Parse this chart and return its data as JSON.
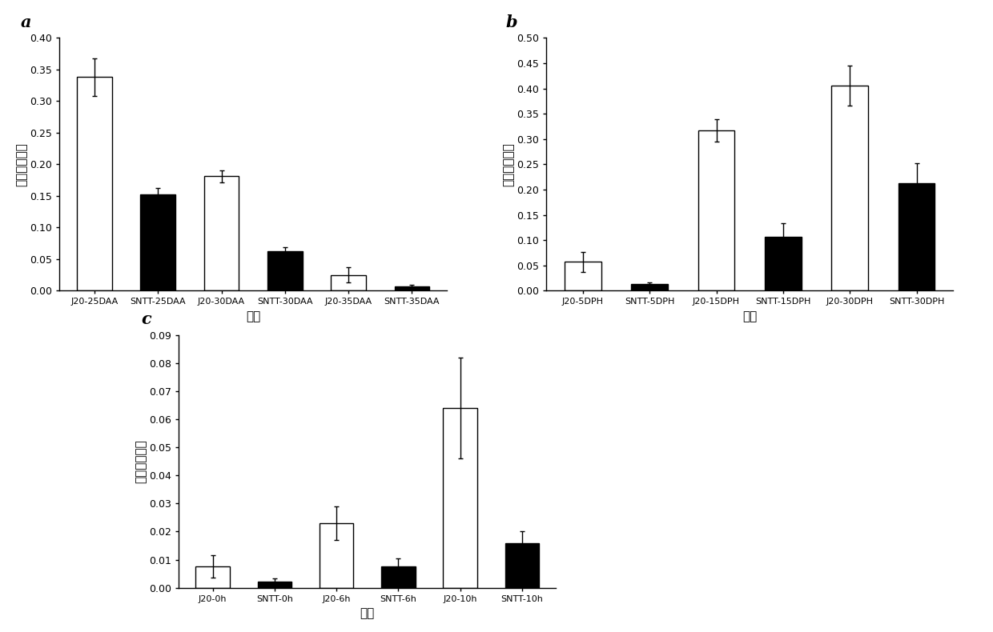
{
  "panel_a": {
    "categories": [
      "J20-25DAA",
      "SNTT-25DAA",
      "J20-30DAA",
      "SNTT-30DAA",
      "J20-35DAA",
      "SNTT-35DAA"
    ],
    "values": [
      0.338,
      0.153,
      0.181,
      0.062,
      0.025,
      0.007
    ],
    "errors": [
      0.03,
      0.01,
      0.01,
      0.007,
      0.012,
      0.003
    ],
    "colors": [
      "white",
      "black",
      "white",
      "black",
      "white",
      "black"
    ],
    "ylim": [
      0,
      0.4
    ],
    "yticks": [
      0.0,
      0.05,
      0.1,
      0.15,
      0.2,
      0.25,
      0.3,
      0.35,
      0.4
    ],
    "ylabel": "相对表达水平",
    "xlabel": "材料",
    "label": "a"
  },
  "panel_b": {
    "categories": [
      "J20-5DPH",
      "SNTT-5DPH",
      "J20-15DPH",
      "SNTT-15DPH",
      "J20-30DPH",
      "SNTT-30DPH"
    ],
    "values": [
      0.057,
      0.013,
      0.317,
      0.106,
      0.406,
      0.213
    ],
    "errors": [
      0.02,
      0.003,
      0.022,
      0.028,
      0.04,
      0.04
    ],
    "colors": [
      "white",
      "black",
      "white",
      "black",
      "white",
      "black"
    ],
    "ylim": [
      0,
      0.5
    ],
    "yticks": [
      0.0,
      0.05,
      0.1,
      0.15,
      0.2,
      0.25,
      0.3,
      0.35,
      0.4,
      0.45,
      0.5
    ],
    "ylabel": "相对表达水平",
    "xlabel": "材料",
    "label": "b"
  },
  "panel_c": {
    "categories": [
      "J20-0h",
      "SNTT-0h",
      "J20-6h",
      "SNTT-6h",
      "J20-10h",
      "SNTT-10h"
    ],
    "values": [
      0.0075,
      0.0023,
      0.023,
      0.0075,
      0.064,
      0.016
    ],
    "errors": [
      0.004,
      0.001,
      0.006,
      0.003,
      0.018,
      0.004
    ],
    "colors": [
      "white",
      "black",
      "white",
      "black",
      "white",
      "black"
    ],
    "ylim": [
      0,
      0.09
    ],
    "yticks": [
      0.0,
      0.01,
      0.02,
      0.03,
      0.04,
      0.05,
      0.06,
      0.07,
      0.08,
      0.09
    ],
    "ylabel": "相对表达水平",
    "xlabel": "材料",
    "label": "c"
  },
  "bar_width": 0.55,
  "background_color": "#ffffff",
  "edge_color": "black",
  "font_size_label": 11,
  "font_size_tick": 9,
  "font_size_panel": 15,
  "font_size_xticklabel": 8
}
